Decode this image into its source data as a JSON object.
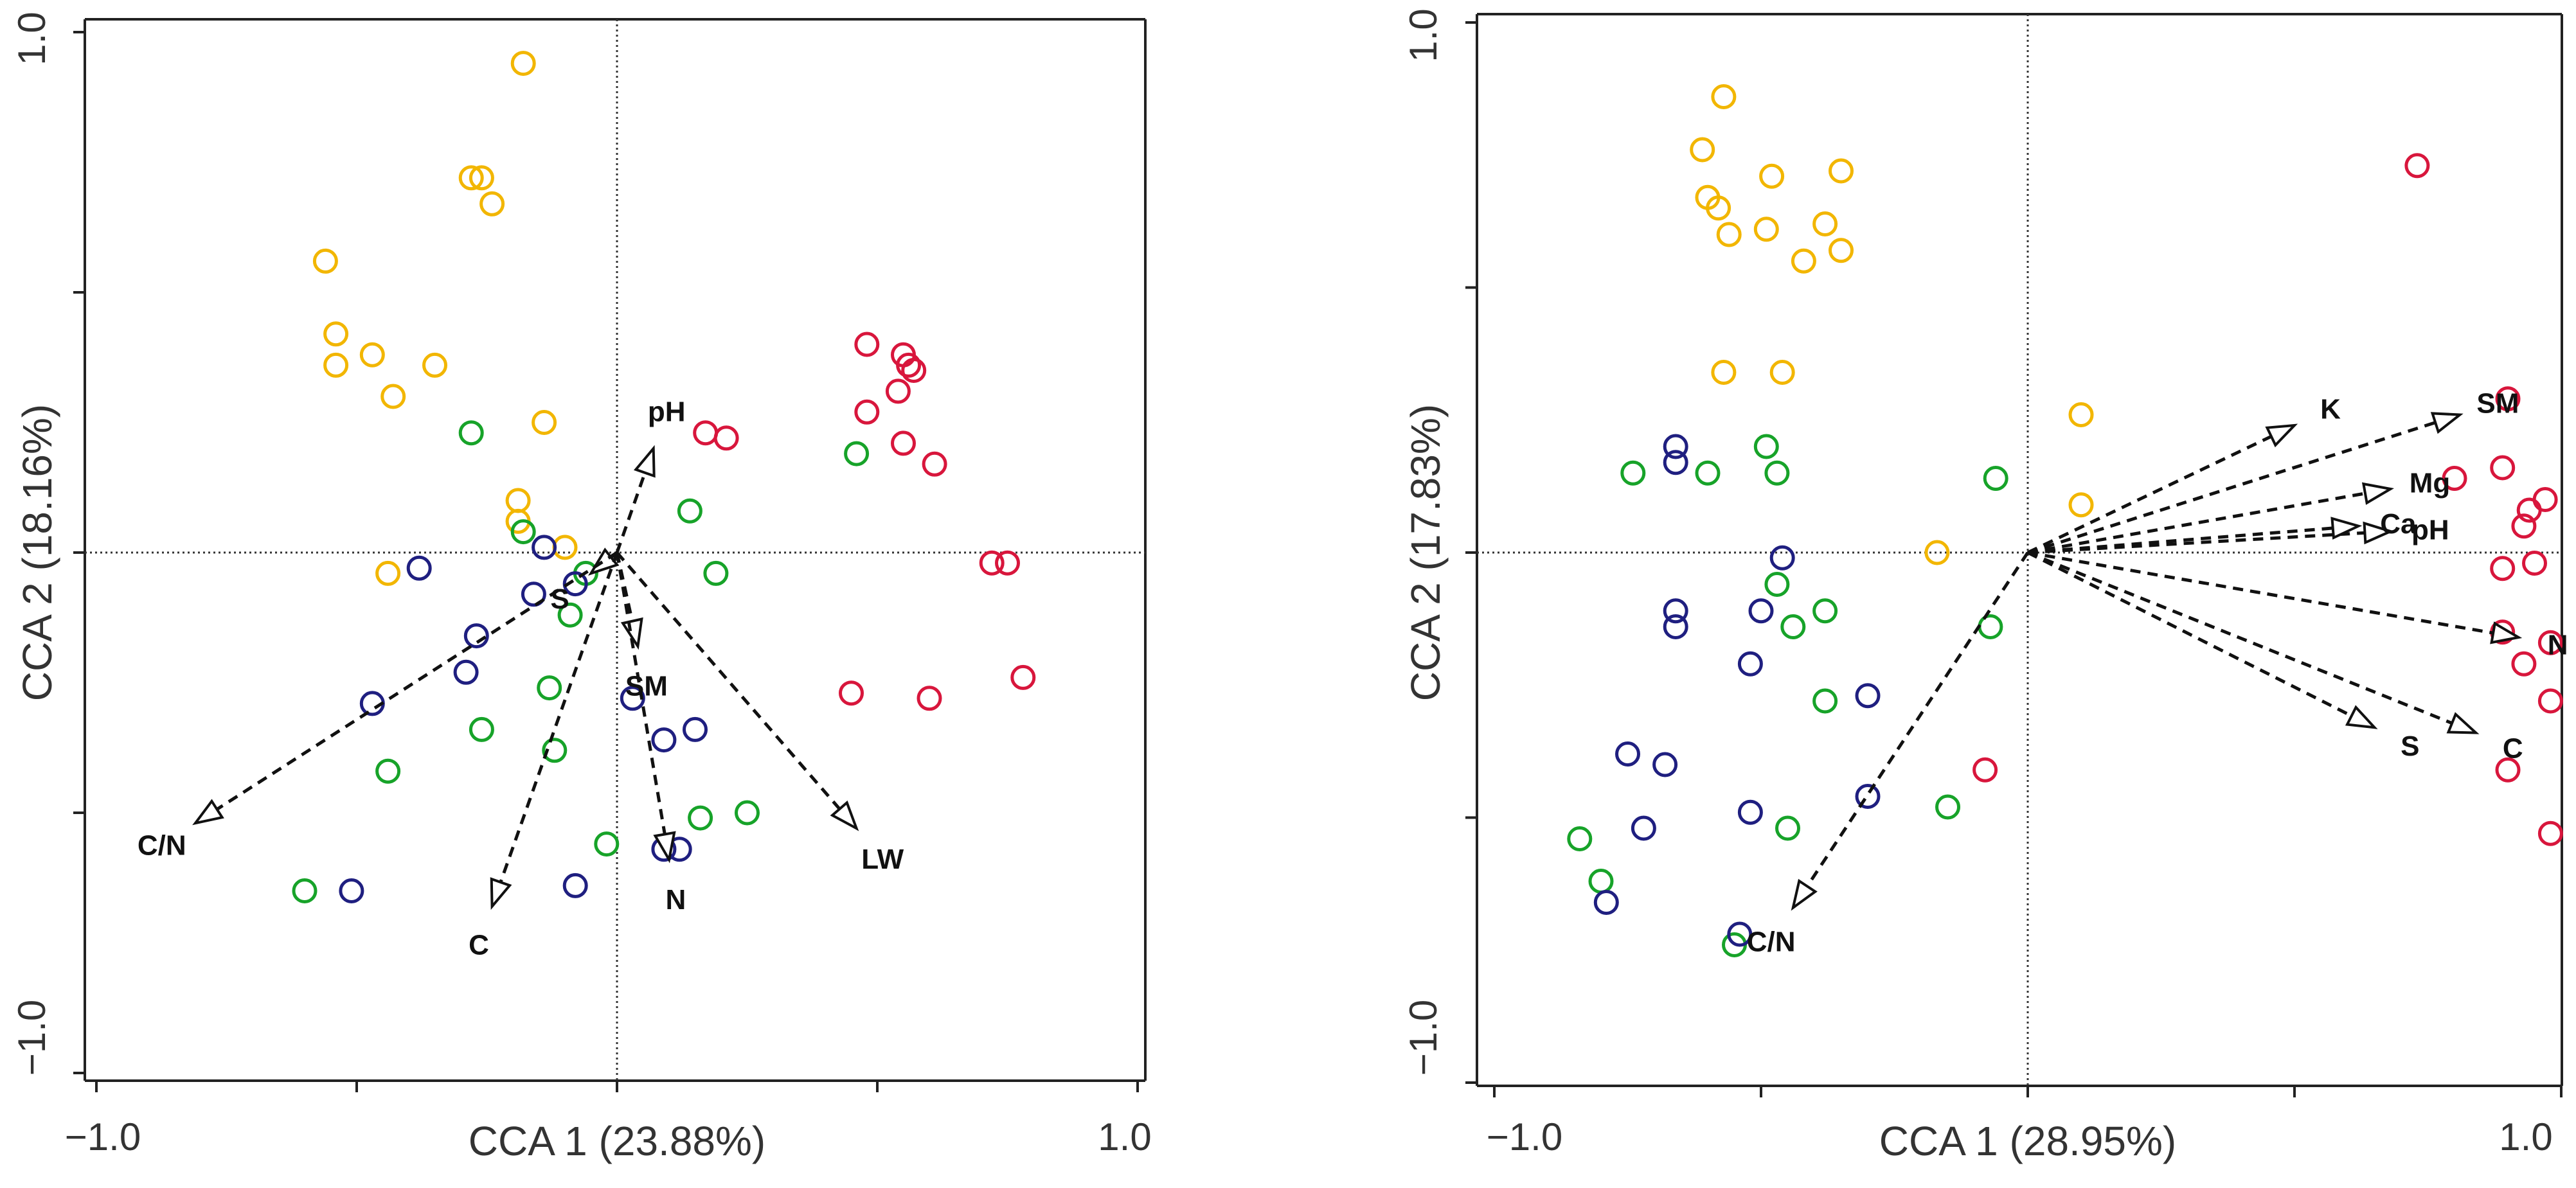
{
  "chart_data": [
    {
      "type": "scatter",
      "xlabel": "CCA 1 (23.88%)",
      "ylabel": "CCA 2 (18.16%)",
      "xlim": [
        -1.0,
        1.0
      ],
      "ylim": [
        -1.0,
        1.0
      ],
      "x_tick_labels": [
        "−1.0",
        "1.0"
      ],
      "y_tick_labels": [
        "1.0",
        "−1.0"
      ],
      "group_colors": {
        "yellow": "#f2b600",
        "green": "#17a329",
        "blue": "#1f1f80",
        "red": "#d8163c"
      },
      "points": [
        {
          "x": -0.18,
          "y": 0.94,
          "group": "yellow"
        },
        {
          "x": -0.28,
          "y": 0.72,
          "group": "yellow"
        },
        {
          "x": -0.26,
          "y": 0.72,
          "group": "yellow"
        },
        {
          "x": -0.24,
          "y": 0.67,
          "group": "yellow"
        },
        {
          "x": -0.56,
          "y": 0.56,
          "group": "yellow"
        },
        {
          "x": -0.54,
          "y": 0.42,
          "group": "yellow"
        },
        {
          "x": -0.54,
          "y": 0.36,
          "group": "yellow"
        },
        {
          "x": -0.47,
          "y": 0.38,
          "group": "yellow"
        },
        {
          "x": -0.43,
          "y": 0.3,
          "group": "yellow"
        },
        {
          "x": -0.35,
          "y": 0.36,
          "group": "yellow"
        },
        {
          "x": -0.14,
          "y": 0.25,
          "group": "yellow"
        },
        {
          "x": -0.19,
          "y": 0.1,
          "group": "yellow"
        },
        {
          "x": -0.19,
          "y": 0.06,
          "group": "yellow"
        },
        {
          "x": -0.1,
          "y": 0.01,
          "group": "yellow"
        },
        {
          "x": -0.44,
          "y": -0.04,
          "group": "yellow"
        },
        {
          "x": -0.28,
          "y": 0.23,
          "group": "green"
        },
        {
          "x": -0.18,
          "y": 0.04,
          "group": "green"
        },
        {
          "x": -0.06,
          "y": -0.04,
          "group": "green"
        },
        {
          "x": -0.09,
          "y": -0.12,
          "group": "green"
        },
        {
          "x": 0.14,
          "y": 0.08,
          "group": "green"
        },
        {
          "x": 0.19,
          "y": -0.04,
          "group": "green"
        },
        {
          "x": 0.46,
          "y": 0.19,
          "group": "green"
        },
        {
          "x": -0.13,
          "y": -0.26,
          "group": "green"
        },
        {
          "x": -0.26,
          "y": -0.34,
          "group": "green"
        },
        {
          "x": -0.12,
          "y": -0.38,
          "group": "green"
        },
        {
          "x": -0.44,
          "y": -0.42,
          "group": "green"
        },
        {
          "x": 0.16,
          "y": -0.51,
          "group": "green"
        },
        {
          "x": 0.25,
          "y": -0.5,
          "group": "green"
        },
        {
          "x": -0.02,
          "y": -0.56,
          "group": "green"
        },
        {
          "x": -0.6,
          "y": -0.65,
          "group": "green"
        },
        {
          "x": -0.38,
          "y": -0.03,
          "group": "blue"
        },
        {
          "x": -0.14,
          "y": 0.01,
          "group": "blue"
        },
        {
          "x": -0.08,
          "y": -0.06,
          "group": "blue"
        },
        {
          "x": -0.16,
          "y": -0.08,
          "group": "blue"
        },
        {
          "x": -0.27,
          "y": -0.16,
          "group": "blue"
        },
        {
          "x": -0.29,
          "y": -0.23,
          "group": "blue"
        },
        {
          "x": -0.47,
          "y": -0.29,
          "group": "blue"
        },
        {
          "x": 0.03,
          "y": -0.28,
          "group": "blue"
        },
        {
          "x": 0.15,
          "y": -0.34,
          "group": "blue"
        },
        {
          "x": 0.09,
          "y": -0.36,
          "group": "blue"
        },
        {
          "x": 0.09,
          "y": -0.57,
          "group": "blue"
        },
        {
          "x": 0.12,
          "y": -0.57,
          "group": "blue"
        },
        {
          "x": -0.08,
          "y": -0.64,
          "group": "blue"
        },
        {
          "x": -0.51,
          "y": -0.65,
          "group": "blue"
        },
        {
          "x": 0.17,
          "y": 0.23,
          "group": "red"
        },
        {
          "x": 0.21,
          "y": 0.22,
          "group": "red"
        },
        {
          "x": 0.48,
          "y": 0.4,
          "group": "red"
        },
        {
          "x": 0.55,
          "y": 0.38,
          "group": "red"
        },
        {
          "x": 0.56,
          "y": 0.36,
          "group": "red"
        },
        {
          "x": 0.57,
          "y": 0.35,
          "group": "red"
        },
        {
          "x": 0.54,
          "y": 0.31,
          "group": "red"
        },
        {
          "x": 0.48,
          "y": 0.27,
          "group": "red"
        },
        {
          "x": 0.55,
          "y": 0.21,
          "group": "red"
        },
        {
          "x": 0.61,
          "y": 0.17,
          "group": "red"
        },
        {
          "x": 0.72,
          "y": -0.02,
          "group": "red"
        },
        {
          "x": 0.75,
          "y": -0.02,
          "group": "red"
        },
        {
          "x": 0.45,
          "y": -0.27,
          "group": "red"
        },
        {
          "x": 0.6,
          "y": -0.28,
          "group": "red"
        },
        {
          "x": 0.78,
          "y": -0.24,
          "group": "red"
        }
      ],
      "vectors": [
        {
          "label": "pH",
          "x": 0.07,
          "y": 0.2
        },
        {
          "label": "S",
          "x": -0.05,
          "y": -0.04
        },
        {
          "label": "SM",
          "x": 0.04,
          "y": -0.18
        },
        {
          "label": "N",
          "x": 0.1,
          "y": -0.59
        },
        {
          "label": "C",
          "x": -0.24,
          "y": -0.68
        },
        {
          "label": "C/N",
          "x": -0.81,
          "y": -0.52
        },
        {
          "label": "LW",
          "x": 0.46,
          "y": -0.53
        }
      ]
    },
    {
      "type": "scatter",
      "xlabel": "CCA 1 (28.95%)",
      "ylabel": "CCA 2 (17.83%)",
      "xlim": [
        -1.0,
        1.0
      ],
      "ylim": [
        -1.0,
        1.0
      ],
      "x_tick_labels": [
        "−1.0",
        "1.0"
      ],
      "y_tick_labels": [
        "1.0",
        "−1.0"
      ],
      "group_colors": {
        "yellow": "#f2b600",
        "green": "#17a329",
        "blue": "#1f1f80",
        "red": "#d8163c"
      },
      "points": [
        {
          "x": -0.57,
          "y": 0.86,
          "group": "yellow"
        },
        {
          "x": -0.61,
          "y": 0.76,
          "group": "yellow"
        },
        {
          "x": -0.6,
          "y": 0.67,
          "group": "yellow"
        },
        {
          "x": -0.58,
          "y": 0.65,
          "group": "yellow"
        },
        {
          "x": -0.48,
          "y": 0.71,
          "group": "yellow"
        },
        {
          "x": -0.35,
          "y": 0.72,
          "group": "yellow"
        },
        {
          "x": -0.38,
          "y": 0.62,
          "group": "yellow"
        },
        {
          "x": -0.49,
          "y": 0.61,
          "group": "yellow"
        },
        {
          "x": -0.56,
          "y": 0.6,
          "group": "yellow"
        },
        {
          "x": -0.42,
          "y": 0.55,
          "group": "yellow"
        },
        {
          "x": -0.35,
          "y": 0.57,
          "group": "yellow"
        },
        {
          "x": -0.57,
          "y": 0.34,
          "group": "yellow"
        },
        {
          "x": -0.46,
          "y": 0.34,
          "group": "yellow"
        },
        {
          "x": 0.1,
          "y": 0.26,
          "group": "yellow"
        },
        {
          "x": 0.1,
          "y": 0.09,
          "group": "yellow"
        },
        {
          "x": -0.17,
          "y": 0.0,
          "group": "yellow"
        },
        {
          "x": -0.74,
          "y": 0.15,
          "group": "green"
        },
        {
          "x": -0.6,
          "y": 0.15,
          "group": "green"
        },
        {
          "x": -0.49,
          "y": 0.2,
          "group": "green"
        },
        {
          "x": -0.47,
          "y": 0.15,
          "group": "green"
        },
        {
          "x": -0.06,
          "y": 0.14,
          "group": "green"
        },
        {
          "x": -0.47,
          "y": -0.06,
          "group": "green"
        },
        {
          "x": -0.38,
          "y": -0.11,
          "group": "green"
        },
        {
          "x": -0.44,
          "y": -0.14,
          "group": "green"
        },
        {
          "x": -0.07,
          "y": -0.14,
          "group": "green"
        },
        {
          "x": -0.38,
          "y": -0.28,
          "group": "green"
        },
        {
          "x": -0.45,
          "y": -0.52,
          "group": "green"
        },
        {
          "x": -0.15,
          "y": -0.48,
          "group": "green"
        },
        {
          "x": -0.84,
          "y": -0.54,
          "group": "green"
        },
        {
          "x": -0.8,
          "y": -0.62,
          "group": "green"
        },
        {
          "x": -0.55,
          "y": -0.74,
          "group": "green"
        },
        {
          "x": -0.66,
          "y": 0.2,
          "group": "blue"
        },
        {
          "x": -0.66,
          "y": 0.17,
          "group": "blue"
        },
        {
          "x": -0.46,
          "y": -0.01,
          "group": "blue"
        },
        {
          "x": -0.66,
          "y": -0.11,
          "group": "blue"
        },
        {
          "x": -0.66,
          "y": -0.14,
          "group": "blue"
        },
        {
          "x": -0.5,
          "y": -0.11,
          "group": "blue"
        },
        {
          "x": -0.52,
          "y": -0.21,
          "group": "blue"
        },
        {
          "x": -0.3,
          "y": -0.27,
          "group": "blue"
        },
        {
          "x": -0.75,
          "y": -0.38,
          "group": "blue"
        },
        {
          "x": -0.68,
          "y": -0.4,
          "group": "blue"
        },
        {
          "x": -0.52,
          "y": -0.49,
          "group": "blue"
        },
        {
          "x": -0.3,
          "y": -0.46,
          "group": "blue"
        },
        {
          "x": -0.72,
          "y": -0.52,
          "group": "blue"
        },
        {
          "x": -0.79,
          "y": -0.66,
          "group": "blue"
        },
        {
          "x": -0.54,
          "y": -0.72,
          "group": "blue"
        },
        {
          "x": 0.73,
          "y": 0.73,
          "group": "red"
        },
        {
          "x": 0.9,
          "y": 0.29,
          "group": "red"
        },
        {
          "x": 0.8,
          "y": 0.14,
          "group": "red"
        },
        {
          "x": 0.89,
          "y": 0.16,
          "group": "red"
        },
        {
          "x": 0.97,
          "y": 0.1,
          "group": "red"
        },
        {
          "x": 0.94,
          "y": 0.08,
          "group": "red"
        },
        {
          "x": 0.93,
          "y": 0.05,
          "group": "red"
        },
        {
          "x": 0.89,
          "y": -0.03,
          "group": "red"
        },
        {
          "x": 0.89,
          "y": -0.15,
          "group": "red"
        },
        {
          "x": 0.95,
          "y": -0.02,
          "group": "red"
        },
        {
          "x": 0.98,
          "y": -0.17,
          "group": "red"
        },
        {
          "x": 0.93,
          "y": -0.21,
          "group": "red"
        },
        {
          "x": 0.98,
          "y": -0.28,
          "group": "red"
        },
        {
          "x": -0.08,
          "y": -0.41,
          "group": "red"
        },
        {
          "x": 0.9,
          "y": -0.41,
          "group": "red"
        },
        {
          "x": 0.98,
          "y": -0.53,
          "group": "red"
        }
      ],
      "vectors": [
        {
          "label": "K",
          "x": 0.5,
          "y": 0.24
        },
        {
          "label": "SM",
          "x": 0.81,
          "y": 0.26
        },
        {
          "label": "Mg",
          "x": 0.68,
          "y": 0.12
        },
        {
          "label": "pH",
          "x": 0.68,
          "y": 0.04
        },
        {
          "label": "Ca",
          "x": 0.62,
          "y": 0.05
        },
        {
          "label": "N",
          "x": 0.92,
          "y": -0.16
        },
        {
          "label": "S",
          "x": 0.65,
          "y": -0.33
        },
        {
          "label": "C",
          "x": 0.84,
          "y": -0.34
        },
        {
          "label": "C/N",
          "x": -0.44,
          "y": -0.67
        }
      ]
    }
  ]
}
